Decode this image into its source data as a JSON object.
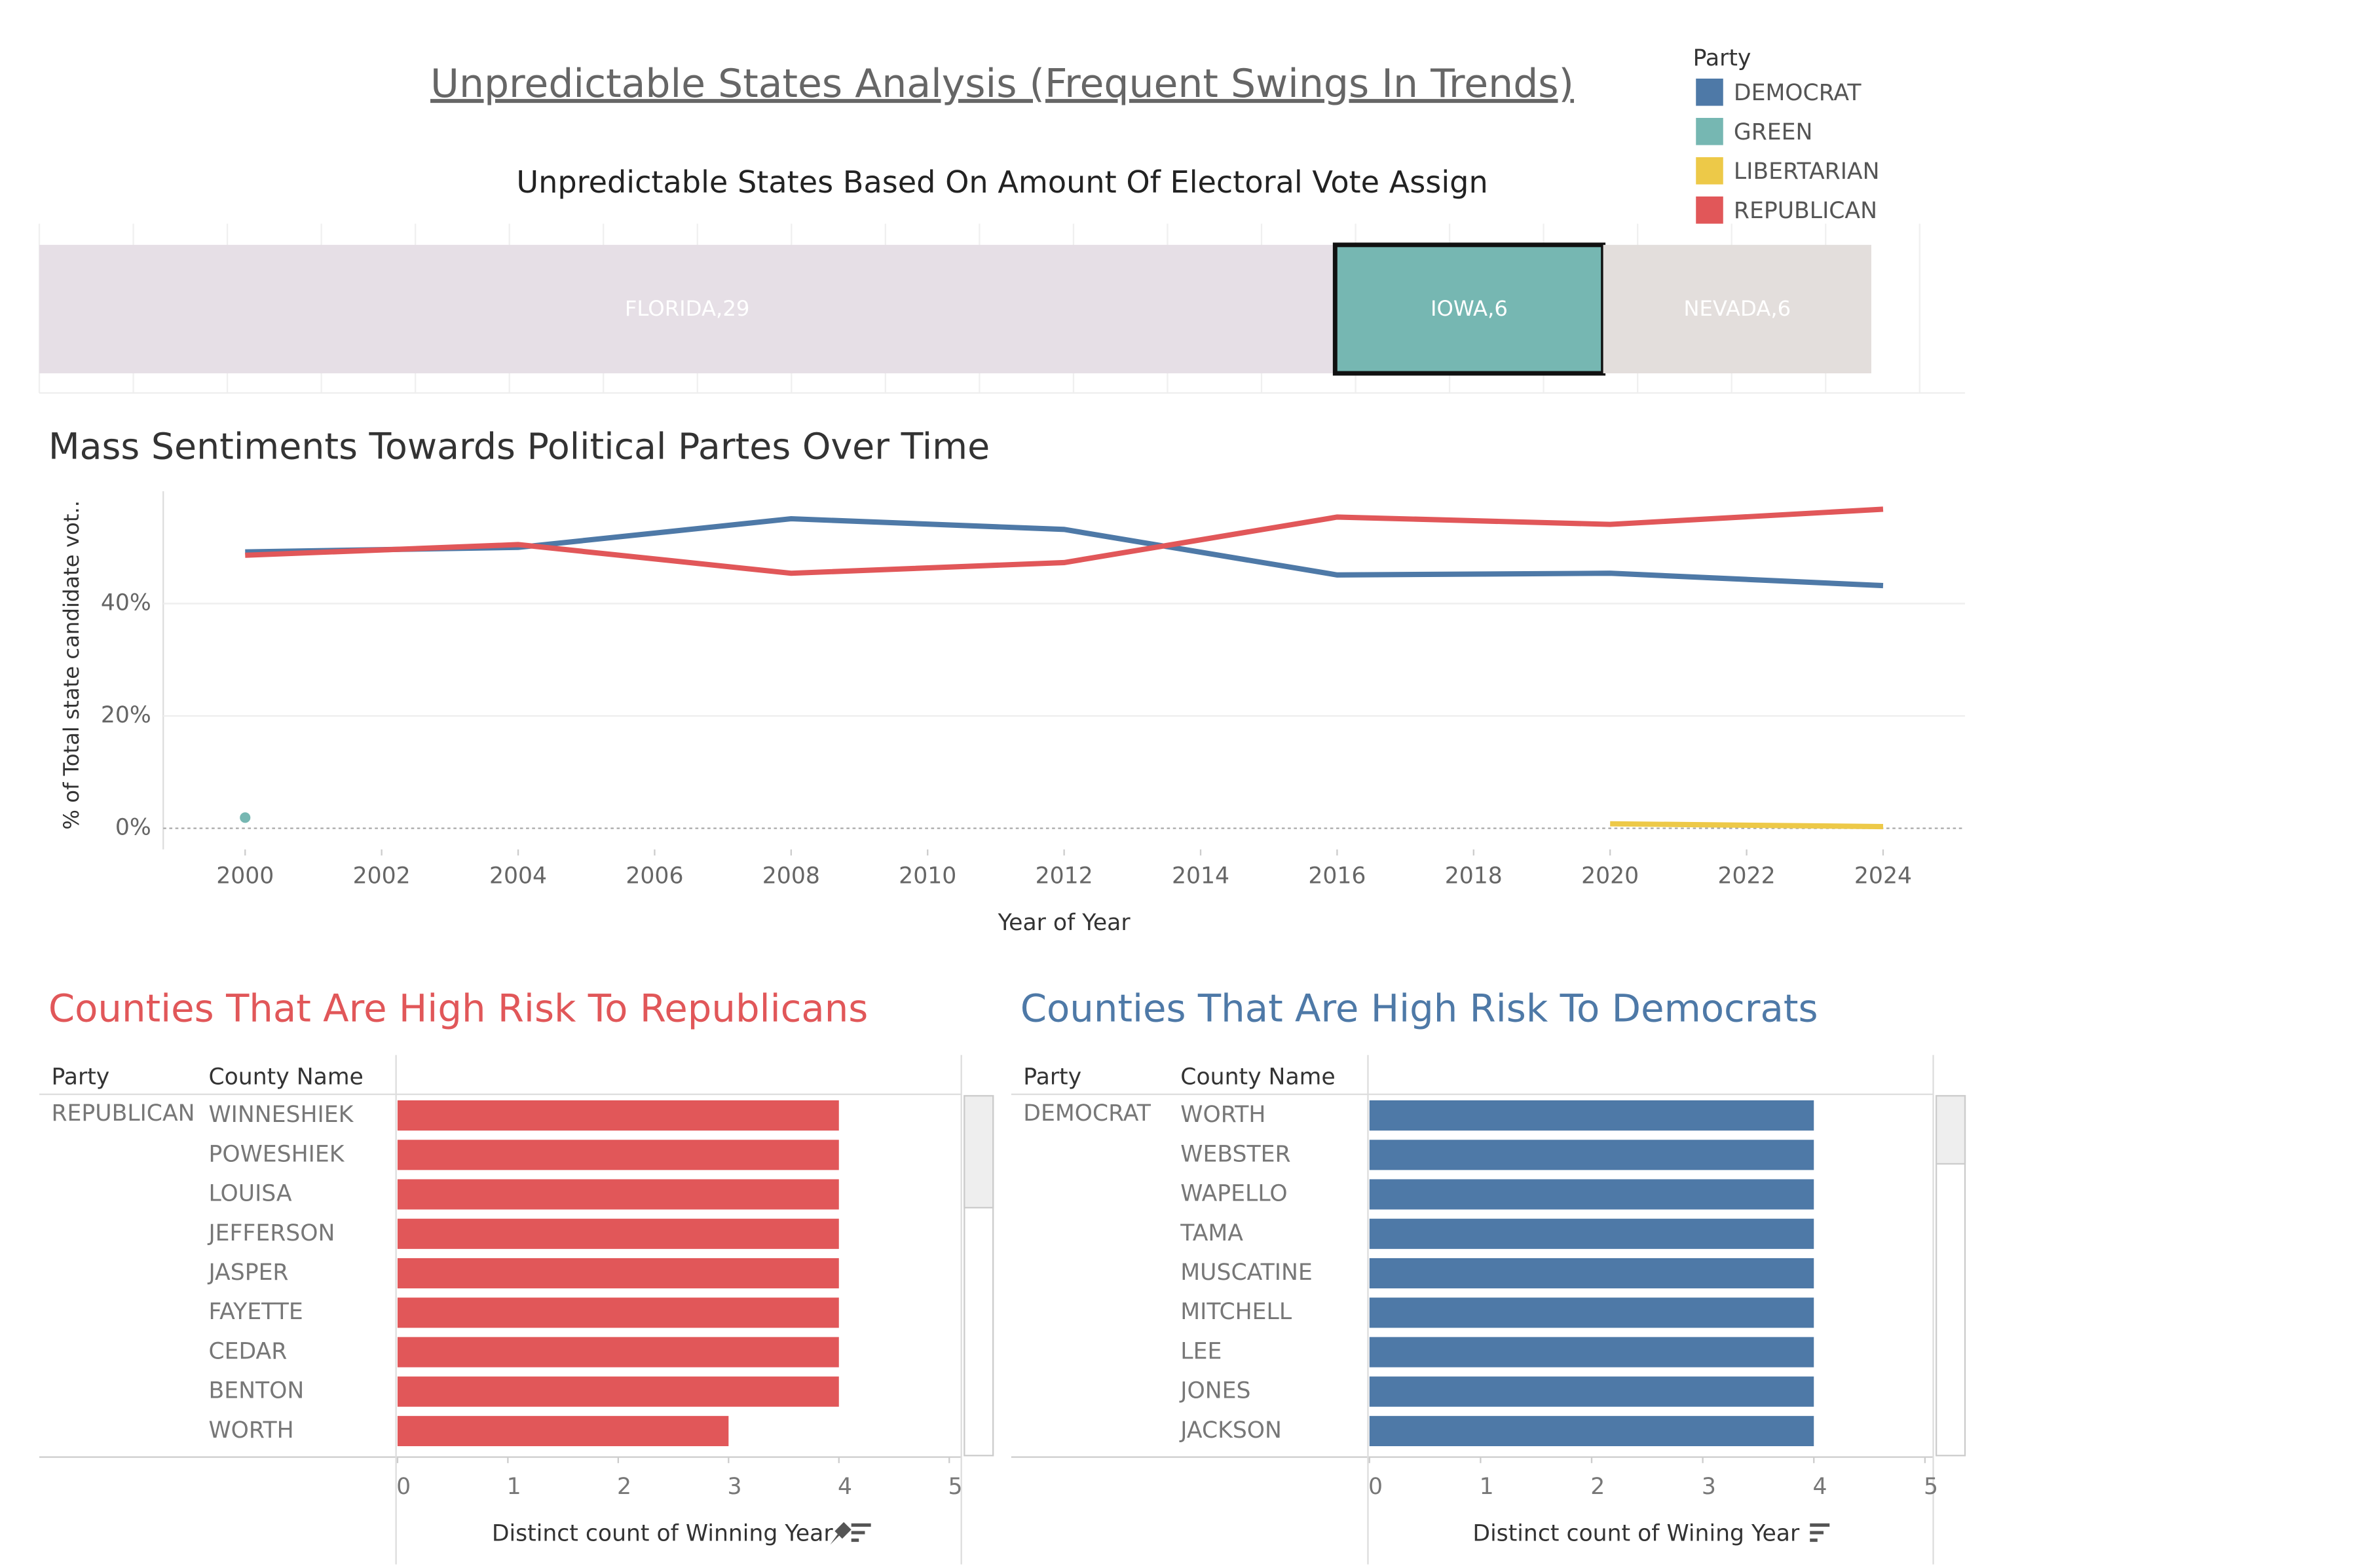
{
  "title": "Unpredictable States Analysis (Frequent Swings In Trends)",
  "legend": {
    "title": "Party"
  },
  "chart_data": [
    {
      "type": "treemap",
      "title": "Unpredictable States Based On Amount Of Electoral Vote Assign",
      "categories": [
        "FLORIDA,29",
        "IOWA,6",
        "NEVADA,6"
      ],
      "values": [
        29,
        6,
        6
      ],
      "colors": [
        "#e6dfe6",
        "#76b7b2",
        "#e3dedc"
      ],
      "selected": 1
    },
    {
      "type": "line",
      "title": "Mass Sentiments Towards Political Partes Over Time",
      "x_label": "Year of Year",
      "y_label": "% of Total state candidate vot..",
      "x": [
        2000,
        2004,
        2008,
        2012,
        2016,
        2020,
        2024
      ],
      "series": [
        {
          "name": "DEMOCRAT",
          "color": "#4e79a7",
          "values": [
            49.2,
            50.0,
            55.1,
            53.2,
            45.1,
            45.4,
            43.2
          ]
        },
        {
          "name": "GREEN",
          "color": "#76b7b2",
          "values": [
            1.9,
            null,
            null,
            null,
            null,
            null,
            null
          ]
        },
        {
          "name": "LIBERTARIAN",
          "color": "#edc948",
          "values": [
            null,
            null,
            null,
            null,
            null,
            0.8,
            0.3
          ]
        },
        {
          "name": "REPUBLICAN",
          "color": "#e15759",
          "values": [
            48.6,
            50.5,
            45.4,
            47.3,
            55.4,
            54.1,
            56.8
          ]
        }
      ],
      "xlim": [
        1998.8,
        2025.2
      ],
      "xticks": [
        2000,
        2002,
        2004,
        2006,
        2008,
        2010,
        2012,
        2014,
        2016,
        2018,
        2020,
        2022,
        2024
      ],
      "ylim": [
        0,
        60
      ],
      "yticks": [
        {
          "value": 0,
          "label": "0%"
        },
        {
          "value": 20,
          "label": "20%"
        },
        {
          "value": 40,
          "label": "40%"
        }
      ],
      "grid": true
    },
    {
      "type": "bar",
      "orientation": "horizontal",
      "title": "Counties That Are High Risk To Republicans",
      "title_color": "#e15759",
      "columns": [
        "Party",
        "County Name"
      ],
      "party": "REPUBLICAN",
      "categories": [
        "WINNESHIEK",
        "POWESHIEK",
        "LOUISA",
        "JEFFERSON",
        "JASPER",
        "FAYETTE",
        "CEDAR",
        "BENTON",
        "WORTH"
      ],
      "values": [
        4,
        4,
        4,
        4,
        4,
        4,
        4,
        4,
        3
      ],
      "color": "#e15759",
      "x_label": "Distinct count of Winning Year",
      "xlim": [
        0,
        5
      ],
      "xticks": [
        0,
        1,
        2,
        3,
        4,
        5
      ]
    },
    {
      "type": "bar",
      "orientation": "horizontal",
      "title": "Counties That Are High Risk To Democrats",
      "title_color": "#4e79a7",
      "columns": [
        "Party",
        "County Name"
      ],
      "party": "DEMOCRAT",
      "categories": [
        "WORTH",
        "WEBSTER",
        "WAPELLO",
        "TAMA",
        "MUSCATINE",
        "MITCHELL",
        "LEE",
        "JONES",
        "JACKSON"
      ],
      "values": [
        4,
        4,
        4,
        4,
        4,
        4,
        4,
        4,
        4
      ],
      "color": "#4e79a7",
      "x_label": "Distinct count of  Wining Year",
      "xlim": [
        0,
        5
      ],
      "xticks": [
        0,
        1,
        2,
        3,
        4,
        5
      ]
    }
  ]
}
